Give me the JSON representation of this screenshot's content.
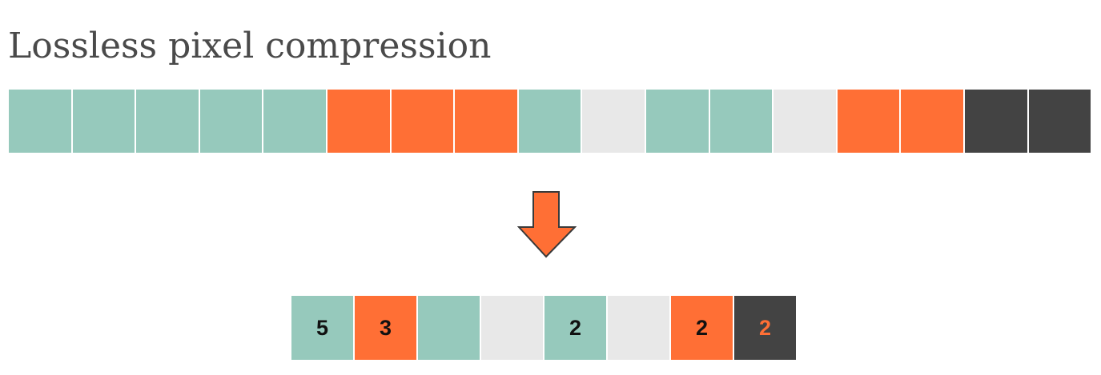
{
  "title": "Lossless pixel compression",
  "colors": {
    "teal": "#96c9bc",
    "orange": "#ff6f35",
    "light_gray": "#e8e8e8",
    "dark_gray": "#434343",
    "text_dark": "#111111",
    "text_orange": "#ff6f35"
  },
  "original_pixels": [
    "teal",
    "teal",
    "teal",
    "teal",
    "teal",
    "orange",
    "orange",
    "orange",
    "teal",
    "light_gray",
    "teal",
    "teal",
    "light_gray",
    "orange",
    "orange",
    "dark_gray",
    "dark_gray"
  ],
  "arrow": {
    "icon": "down-arrow-icon",
    "color": "#ff6f35",
    "outline": "#3a3a3a"
  },
  "compressed_pixels": [
    {
      "color": "teal",
      "label": "5",
      "label_color": "text_dark"
    },
    {
      "color": "orange",
      "label": "3",
      "label_color": "text_dark"
    },
    {
      "color": "teal",
      "label": "",
      "label_color": "text_dark"
    },
    {
      "color": "light_gray",
      "label": "",
      "label_color": "text_dark"
    },
    {
      "color": "teal",
      "label": "2",
      "label_color": "text_dark"
    },
    {
      "color": "light_gray",
      "label": "",
      "label_color": "text_dark"
    },
    {
      "color": "orange",
      "label": "2",
      "label_color": "text_dark"
    },
    {
      "color": "dark_gray",
      "label": "2",
      "label_color": "text_orange"
    }
  ]
}
